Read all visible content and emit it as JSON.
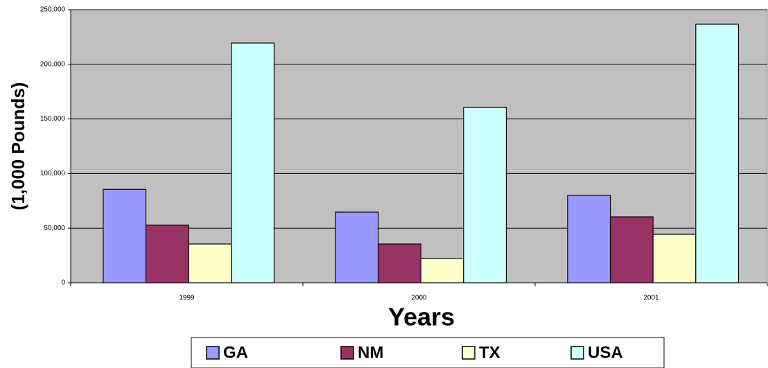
{
  "chart_data": {
    "type": "bar",
    "y_label": "(1,000 Pounds)",
    "x_label": "Years",
    "categories": [
      "1999",
      "2000",
      "2001"
    ],
    "series": [
      {
        "name": "GA",
        "color": "#9999ff",
        "values": [
          85500,
          64700,
          80000
        ]
      },
      {
        "name": "NM",
        "color": "#993366",
        "values": [
          52700,
          35500,
          60300
        ]
      },
      {
        "name": "TX",
        "color": "#ffffcc",
        "values": [
          35500,
          22200,
          44400
        ]
      },
      {
        "name": "USA",
        "color": "#ccffff",
        "values": [
          219500,
          160500,
          236700
        ]
      }
    ],
    "ylim": [
      0,
      250000
    ],
    "yticks": [
      0,
      {
        "value": 50000,
        "label": "50,000"
      },
      {
        "value": 100000,
        "label": "100,000"
      },
      {
        "value": 150000,
        "label": "150,000"
      },
      {
        "value": 200000,
        "label": "200,000"
      },
      {
        "value": 250000,
        "label": "250,000"
      }
    ],
    "grid": true,
    "plot_background": "#c0c0c0",
    "legend": "bottom"
  }
}
